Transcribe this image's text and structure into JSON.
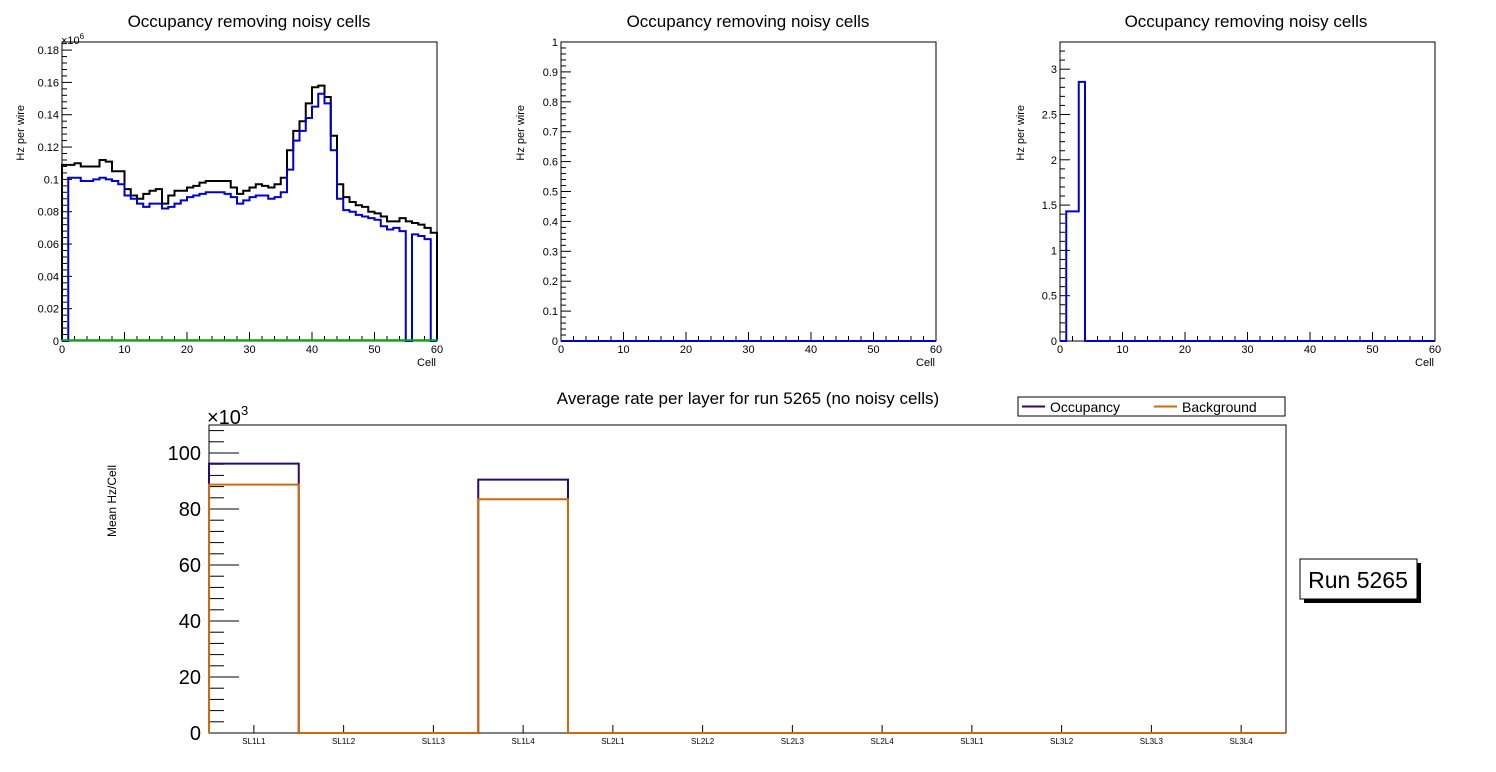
{
  "chart_data": [
    {
      "type": "histogram",
      "title": "Occupancy removing noisy cells",
      "xlabel": "Cell",
      "ylabel": "Hz per wire",
      "xlim": [
        0,
        60
      ],
      "ylim": [
        0,
        0.185
      ],
      "yticks": [
        0,
        0.02,
        0.04,
        0.06,
        0.08,
        0.1,
        0.12,
        0.14,
        0.16,
        0.18
      ],
      "ytick_labels": [
        "0",
        "0.02",
        "0.04",
        "0.06",
        "0.08",
        "0.1",
        "0.12",
        "0.14",
        "0.16",
        "0.18"
      ],
      "xticks": [
        0,
        10,
        20,
        30,
        40,
        50,
        60
      ],
      "xtick_labels": [
        "0",
        "10",
        "20",
        "30",
        "40",
        "50",
        "60"
      ],
      "exponent_label": "×10",
      "exponent_power": "6",
      "series": [
        {
          "name": "occupancy-black",
          "color": "#000000",
          "values": [
            0.109,
            0.109,
            0.11,
            0.108,
            0.108,
            0.108,
            0.112,
            0.111,
            0.105,
            0.105,
            0.094,
            0.09,
            0.088,
            0.091,
            0.093,
            0.094,
            0.085,
            0.09,
            0.093,
            0.093,
            0.095,
            0.096,
            0.098,
            0.099,
            0.099,
            0.099,
            0.099,
            0.095,
            0.091,
            0.093,
            0.095,
            0.097,
            0.096,
            0.095,
            0.097,
            0.101,
            0.118,
            0.13,
            0.136,
            0.147,
            0.157,
            0.158,
            0.151,
            0.127,
            0.097,
            0.089,
            0.086,
            0.084,
            0.083,
            0.08,
            0.079,
            0.077,
            0.074,
            0.074,
            0.076,
            0.074,
            0.073,
            0.072,
            0.07,
            0.067
          ]
        },
        {
          "name": "occupancy-blue",
          "color": "#0000cc",
          "values": [
            0.0,
            0.101,
            0.101,
            0.099,
            0.099,
            0.1,
            0.101,
            0.1,
            0.099,
            0.097,
            0.09,
            0.088,
            0.085,
            0.083,
            0.085,
            0.085,
            0.082,
            0.083,
            0.085,
            0.087,
            0.089,
            0.09,
            0.091,
            0.092,
            0.092,
            0.092,
            0.091,
            0.089,
            0.085,
            0.087,
            0.089,
            0.09,
            0.09,
            0.088,
            0.089,
            0.092,
            0.106,
            0.124,
            0.13,
            0.138,
            0.145,
            0.153,
            0.147,
            0.118,
            0.088,
            0.081,
            0.08,
            0.078,
            0.077,
            0.076,
            0.075,
            0.071,
            0.069,
            0.07,
            0.068,
            0.0,
            0.066,
            0.065,
            0.063,
            0.0
          ]
        },
        {
          "name": "background-green",
          "color": "#00aa00",
          "values": [
            0.0005,
            0.0005,
            0.0005,
            0.0005,
            0.0005,
            0.0005,
            0.0005,
            0.0005,
            0.0005,
            0.0005,
            0.0005,
            0.0005,
            0.0005,
            0.0005,
            0.0005,
            0.0005,
            0.0005,
            0.0005,
            0.0005,
            0.0005,
            0.0005,
            0.0005,
            0.0005,
            0.0005,
            0.0005,
            0.0005,
            0.0005,
            0.0005,
            0.0005,
            0.0005,
            0.0005,
            0.0005,
            0.0005,
            0.0005,
            0.0005,
            0.0005,
            0.0005,
            0.0005,
            0.0005,
            0.0005,
            0.0005,
            0.0005,
            0.0005,
            0.0005,
            0.0005,
            0.0005,
            0.0005,
            0.0005,
            0.0005,
            0.0005,
            0.0005,
            0.0005,
            0.0005,
            0.0005,
            0.0005,
            0.0005,
            0.0005,
            0.0005,
            0.0005,
            0.0005
          ]
        }
      ]
    },
    {
      "type": "histogram",
      "title": "Occupancy removing noisy cells",
      "xlabel": "Cell",
      "ylabel": "Hz per wire",
      "xlim": [
        0,
        60
      ],
      "ylim": [
        0,
        1
      ],
      "yticks": [
        0,
        0.1,
        0.2,
        0.3,
        0.4,
        0.5,
        0.6,
        0.7,
        0.8,
        0.9,
        1
      ],
      "ytick_labels": [
        "0",
        "0.1",
        "0.2",
        "0.3",
        "0.4",
        "0.5",
        "0.6",
        "0.7",
        "0.8",
        "0.9",
        "1"
      ],
      "xticks": [
        0,
        10,
        20,
        30,
        40,
        50,
        60
      ],
      "xtick_labels": [
        "0",
        "10",
        "20",
        "30",
        "40",
        "50",
        "60"
      ],
      "series": [
        {
          "name": "occupancy-blue",
          "color": "#0000cc",
          "values": [
            0,
            0,
            0,
            0,
            0,
            0,
            0,
            0,
            0,
            0,
            0,
            0,
            0,
            0,
            0,
            0,
            0,
            0,
            0,
            0,
            0,
            0,
            0,
            0,
            0,
            0,
            0,
            0,
            0,
            0,
            0,
            0,
            0,
            0,
            0,
            0,
            0,
            0,
            0,
            0,
            0,
            0,
            0,
            0,
            0,
            0,
            0,
            0,
            0,
            0,
            0,
            0,
            0,
            0,
            0,
            0,
            0,
            0,
            0,
            0
          ]
        }
      ]
    },
    {
      "type": "histogram",
      "title": "Occupancy removing noisy cells",
      "xlabel": "Cell",
      "ylabel": "Hz per wire",
      "xlim": [
        0,
        60
      ],
      "ylim": [
        0,
        3.3
      ],
      "yticks": [
        0,
        0.5,
        1,
        1.5,
        2,
        2.5,
        3
      ],
      "ytick_labels": [
        "0",
        "0.5",
        "1",
        "1.5",
        "2",
        "2.5",
        "3"
      ],
      "xticks": [
        0,
        10,
        20,
        30,
        40,
        50,
        60
      ],
      "xtick_labels": [
        "0",
        "10",
        "20",
        "30",
        "40",
        "50",
        "60"
      ],
      "series": [
        {
          "name": "occupancy-blue",
          "color": "#0000cc",
          "values": [
            0,
            1.43,
            1.43,
            2.86,
            0,
            0,
            0,
            0,
            0,
            0,
            0,
            0,
            0,
            0,
            0,
            0,
            0,
            0,
            0,
            0,
            0,
            0,
            0,
            0,
            0,
            0,
            0,
            0,
            0,
            0,
            0,
            0,
            0,
            0,
            0,
            0,
            0,
            0,
            0,
            0,
            0,
            0,
            0,
            0,
            0,
            0,
            0,
            0,
            0,
            0,
            0,
            0,
            0,
            0,
            0,
            0,
            0,
            0,
            0,
            0
          ]
        }
      ]
    },
    {
      "type": "histogram",
      "title": "Average rate per layer for run 5265 (no noisy cells)",
      "xlabel": "",
      "ylabel": "Mean Hz/Cell",
      "ylim": [
        0,
        110
      ],
      "yticks": [
        0,
        20,
        40,
        60,
        80,
        100
      ],
      "ytick_labels": [
        "0",
        "20",
        "40",
        "60",
        "80",
        "100"
      ],
      "exponent_label": "×10",
      "exponent_power": "3",
      "categories": [
        "SL1L1",
        "SL1L2",
        "SL1L3",
        "SL1L4",
        "SL2L1",
        "SL2L2",
        "SL2L3",
        "SL2L4",
        "SL3L1",
        "SL3L2",
        "SL3L3",
        "SL3L4"
      ],
      "series": [
        {
          "name": "Occupancy",
          "color": "#2a0a6a",
          "values": [
            96.2,
            0,
            0,
            90.5,
            0,
            0,
            0,
            0,
            0,
            0,
            0,
            0
          ]
        },
        {
          "name": "Background",
          "color": "#d0690c",
          "values": [
            88.7,
            0,
            0,
            83.5,
            0,
            0,
            0,
            0,
            0,
            0,
            0,
            0
          ]
        }
      ],
      "legend": {
        "position": "top-right",
        "entries": [
          "Occupancy",
          "Background"
        ]
      },
      "run_label": "Run 5265"
    }
  ]
}
